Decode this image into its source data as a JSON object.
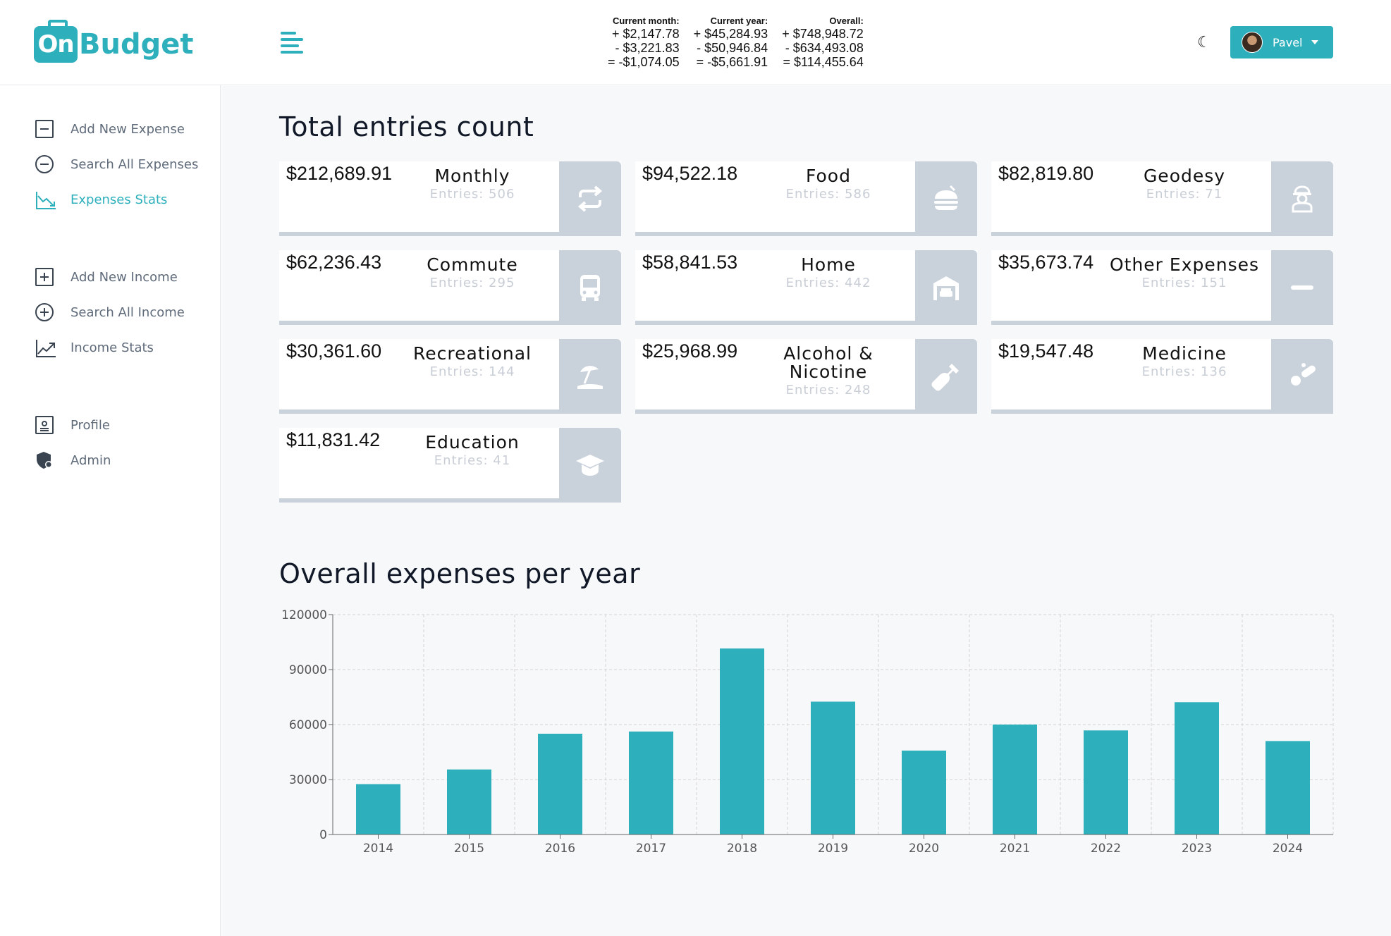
{
  "brand": {
    "prefix": "On",
    "name": "Budget",
    "accent": "#2eb0bc"
  },
  "summary": [
    {
      "heading": "Current month:",
      "plus": "+ $2,147.78",
      "minus": "- $3,221.83",
      "total": "= -$1,074.05"
    },
    {
      "heading": "Current year:",
      "plus": "+ $45,284.93",
      "minus": "- $50,946.84",
      "total": "= -$5,661.91"
    },
    {
      "heading": "Overall:",
      "plus": "+ $748,948.72",
      "minus": "- $634,493.08",
      "total": "= $114,455.64"
    }
  ],
  "user": {
    "name": "Pavel",
    "icon": "user-avatar"
  },
  "sidebar": {
    "items": [
      {
        "label": "Add New Expense",
        "icon": "minus-square-icon"
      },
      {
        "label": "Search All Expenses",
        "icon": "minus-circle-icon"
      },
      {
        "label": "Expenses Stats",
        "icon": "chart-down-icon"
      },
      {
        "label": "Add New Income",
        "icon": "plus-square-icon"
      },
      {
        "label": "Search All Income",
        "icon": "plus-circle-icon"
      },
      {
        "label": "Income Stats",
        "icon": "chart-up-icon"
      },
      {
        "label": "Profile",
        "icon": "profile-card-icon"
      },
      {
        "label": "Admin",
        "icon": "admin-shield-icon"
      }
    ]
  },
  "entries_section": {
    "title": "Total entries count",
    "cards": [
      {
        "amount": "$212,689.91",
        "name": "Monthly",
        "entries": "Entries: 506",
        "icon": "repeat-icon"
      },
      {
        "amount": "$94,522.18",
        "name": "Food",
        "entries": "Entries: 586",
        "icon": "burger-icon"
      },
      {
        "amount": "$82,819.80",
        "name": "Geodesy",
        "entries": "Entries: 71",
        "icon": "worker-icon"
      },
      {
        "amount": "$62,236.43",
        "name": "Commute",
        "entries": "Entries: 295",
        "icon": "bus-icon"
      },
      {
        "amount": "$58,841.53",
        "name": "Home",
        "entries": "Entries: 442",
        "icon": "garage-icon"
      },
      {
        "amount": "$35,673.74",
        "name": "Other Expenses",
        "entries": "Entries: 151",
        "icon": "minus-icon"
      },
      {
        "amount": "$30,361.60",
        "name": "Recreational",
        "entries": "Entries: 144",
        "icon": "umbrella-beach-icon"
      },
      {
        "amount": "$25,968.99",
        "name": "Alcohol & Nicotine",
        "entries": "Entries: 248",
        "icon": "bottle-icon"
      },
      {
        "amount": "$19,547.48",
        "name": "Medicine",
        "entries": "Entries: 136",
        "icon": "pills-icon"
      },
      {
        "amount": "$11,831.42",
        "name": "Education",
        "entries": "Entries: 41",
        "icon": "graduation-cap-icon"
      }
    ]
  },
  "chart_section": {
    "title": "Overall expenses per year"
  },
  "chart_data": {
    "type": "bar",
    "title": "Overall expenses per year",
    "categories": [
      "2014",
      "2015",
      "2016",
      "2017",
      "2018",
      "2019",
      "2020",
      "2021",
      "2022",
      "2023",
      "2024"
    ],
    "values": [
      27500,
      35500,
      55000,
      56200,
      101500,
      72500,
      45800,
      60000,
      56800,
      72200,
      51000
    ],
    "ylim": [
      0,
      120000
    ],
    "yticks": [
      0,
      30000,
      60000,
      90000,
      120000
    ],
    "xlabel": "",
    "ylabel": "",
    "grid": true,
    "color": "#2eb0bc"
  }
}
